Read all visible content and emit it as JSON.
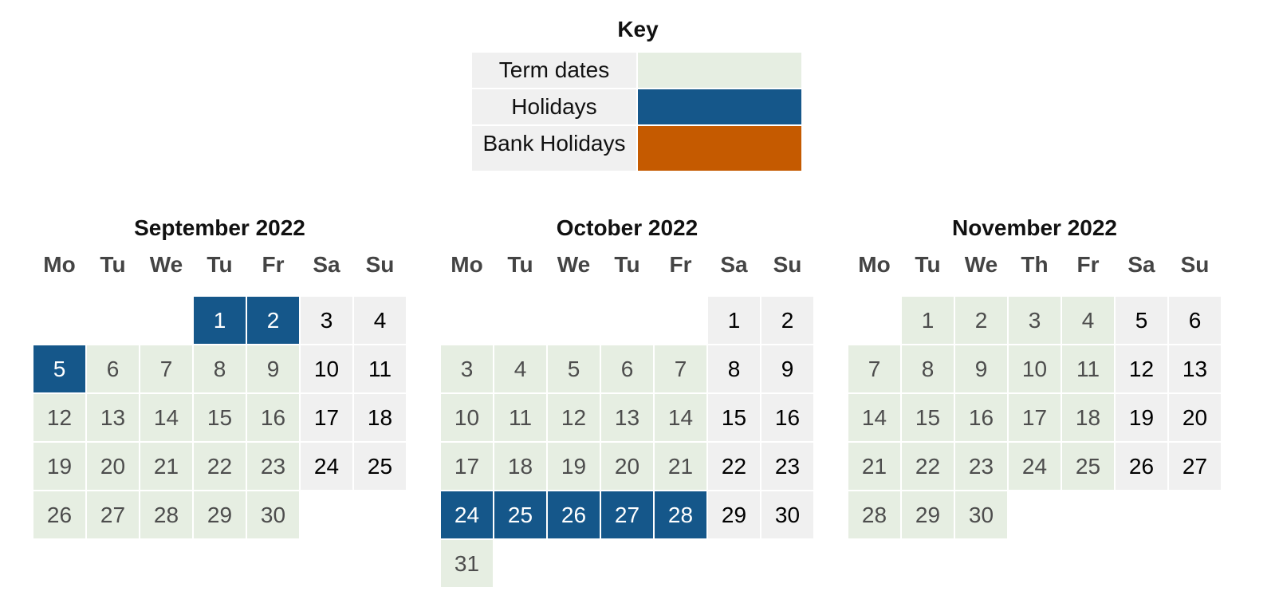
{
  "key": {
    "title": "Key",
    "items": [
      {
        "label": "Term dates",
        "color": "#e6eee2"
      },
      {
        "label": "Holidays",
        "color": "#15578a"
      },
      {
        "label": "Bank Holidays",
        "color": "#c55a00"
      }
    ]
  },
  "months": [
    {
      "title": "September 2022",
      "weekdays": [
        "Mo",
        "Tu",
        "We",
        "Tu",
        "Fr",
        "Sa",
        "Su"
      ],
      "weeks": [
        [
          null,
          null,
          null,
          {
            "d": "1",
            "t": "holiday"
          },
          {
            "d": "2",
            "t": "holiday"
          },
          {
            "d": "3",
            "t": "weekend"
          },
          {
            "d": "4",
            "t": "weekend"
          }
        ],
        [
          {
            "d": "5",
            "t": "holiday"
          },
          {
            "d": "6",
            "t": "term"
          },
          {
            "d": "7",
            "t": "term"
          },
          {
            "d": "8",
            "t": "term"
          },
          {
            "d": "9",
            "t": "term"
          },
          {
            "d": "10",
            "t": "weekend"
          },
          {
            "d": "11",
            "t": "weekend"
          }
        ],
        [
          {
            "d": "12",
            "t": "term"
          },
          {
            "d": "13",
            "t": "term"
          },
          {
            "d": "14",
            "t": "term"
          },
          {
            "d": "15",
            "t": "term"
          },
          {
            "d": "16",
            "t": "term"
          },
          {
            "d": "17",
            "t": "weekend"
          },
          {
            "d": "18",
            "t": "weekend"
          }
        ],
        [
          {
            "d": "19",
            "t": "term"
          },
          {
            "d": "20",
            "t": "term"
          },
          {
            "d": "21",
            "t": "term"
          },
          {
            "d": "22",
            "t": "term"
          },
          {
            "d": "23",
            "t": "term"
          },
          {
            "d": "24",
            "t": "weekend"
          },
          {
            "d": "25",
            "t": "weekend"
          }
        ],
        [
          {
            "d": "26",
            "t": "term"
          },
          {
            "d": "27",
            "t": "term"
          },
          {
            "d": "28",
            "t": "term"
          },
          {
            "d": "29",
            "t": "term"
          },
          {
            "d": "30",
            "t": "term"
          },
          null,
          null
        ]
      ]
    },
    {
      "title": "October 2022",
      "weekdays": [
        "Mo",
        "Tu",
        "We",
        "Tu",
        "Fr",
        "Sa",
        "Su"
      ],
      "weeks": [
        [
          null,
          null,
          null,
          null,
          null,
          {
            "d": "1",
            "t": "weekend"
          },
          {
            "d": "2",
            "t": "weekend"
          }
        ],
        [
          {
            "d": "3",
            "t": "term"
          },
          {
            "d": "4",
            "t": "term"
          },
          {
            "d": "5",
            "t": "term"
          },
          {
            "d": "6",
            "t": "term"
          },
          {
            "d": "7",
            "t": "term"
          },
          {
            "d": "8",
            "t": "weekend"
          },
          {
            "d": "9",
            "t": "weekend"
          }
        ],
        [
          {
            "d": "10",
            "t": "term"
          },
          {
            "d": "11",
            "t": "term"
          },
          {
            "d": "12",
            "t": "term"
          },
          {
            "d": "13",
            "t": "term"
          },
          {
            "d": "14",
            "t": "term"
          },
          {
            "d": "15",
            "t": "weekend"
          },
          {
            "d": "16",
            "t": "weekend"
          }
        ],
        [
          {
            "d": "17",
            "t": "term"
          },
          {
            "d": "18",
            "t": "term"
          },
          {
            "d": "19",
            "t": "term"
          },
          {
            "d": "20",
            "t": "term"
          },
          {
            "d": "21",
            "t": "term"
          },
          {
            "d": "22",
            "t": "weekend"
          },
          {
            "d": "23",
            "t": "weekend"
          }
        ],
        [
          {
            "d": "24",
            "t": "holiday"
          },
          {
            "d": "25",
            "t": "holiday"
          },
          {
            "d": "26",
            "t": "holiday"
          },
          {
            "d": "27",
            "t": "holiday"
          },
          {
            "d": "28",
            "t": "holiday"
          },
          {
            "d": "29",
            "t": "weekend"
          },
          {
            "d": "30",
            "t": "weekend"
          }
        ],
        [
          {
            "d": "31",
            "t": "term"
          },
          null,
          null,
          null,
          null,
          null,
          null
        ]
      ]
    },
    {
      "title": "November 2022",
      "weekdays": [
        "Mo",
        "Tu",
        "We",
        "Th",
        "Fr",
        "Sa",
        "Su"
      ],
      "weeks": [
        [
          null,
          {
            "d": "1",
            "t": "term"
          },
          {
            "d": "2",
            "t": "term"
          },
          {
            "d": "3",
            "t": "term"
          },
          {
            "d": "4",
            "t": "term"
          },
          {
            "d": "5",
            "t": "weekend"
          },
          {
            "d": "6",
            "t": "weekend"
          }
        ],
        [
          {
            "d": "7",
            "t": "term"
          },
          {
            "d": "8",
            "t": "term"
          },
          {
            "d": "9",
            "t": "term"
          },
          {
            "d": "10",
            "t": "term"
          },
          {
            "d": "11",
            "t": "term"
          },
          {
            "d": "12",
            "t": "weekend"
          },
          {
            "d": "13",
            "t": "weekend"
          }
        ],
        [
          {
            "d": "14",
            "t": "term"
          },
          {
            "d": "15",
            "t": "term"
          },
          {
            "d": "16",
            "t": "term"
          },
          {
            "d": "17",
            "t": "term"
          },
          {
            "d": "18",
            "t": "term"
          },
          {
            "d": "19",
            "t": "weekend"
          },
          {
            "d": "20",
            "t": "weekend"
          }
        ],
        [
          {
            "d": "21",
            "t": "term"
          },
          {
            "d": "22",
            "t": "term"
          },
          {
            "d": "23",
            "t": "term"
          },
          {
            "d": "24",
            "t": "term"
          },
          {
            "d": "25",
            "t": "term"
          },
          {
            "d": "26",
            "t": "weekend"
          },
          {
            "d": "27",
            "t": "weekend"
          }
        ],
        [
          {
            "d": "28",
            "t": "term"
          },
          {
            "d": "29",
            "t": "term"
          },
          {
            "d": "30",
            "t": "term"
          },
          null,
          null,
          null,
          null
        ]
      ]
    }
  ]
}
